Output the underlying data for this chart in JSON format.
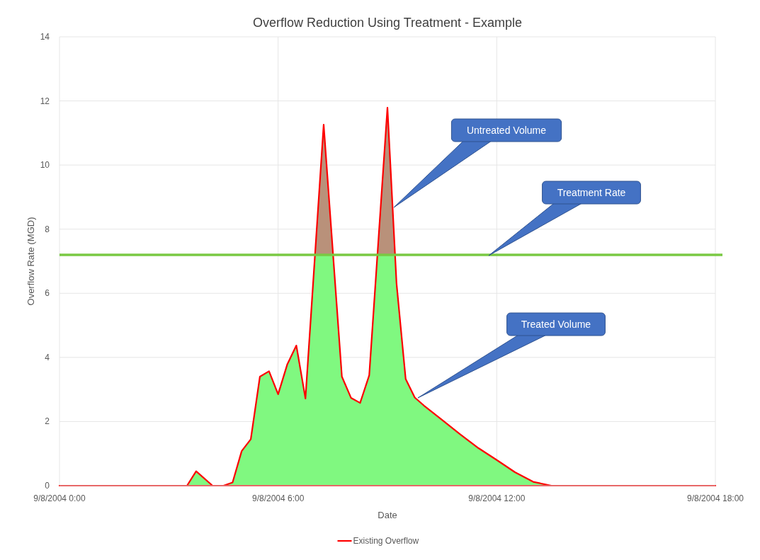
{
  "chart_data": {
    "type": "area",
    "title": "Overflow Reduction Using Treatment - Example",
    "xlabel": "Date",
    "ylabel": "Overflow Rate (MGD)",
    "x": [
      "2004-09-08T00:00",
      "2004-09-08T03:30",
      "2004-09-08T03:45",
      "2004-09-08T04:12",
      "2004-09-08T04:30",
      "2004-09-08T04:45",
      "2004-09-08T05:00",
      "2004-09-08T05:15",
      "2004-09-08T05:30",
      "2004-09-08T05:45",
      "2004-09-08T06:00",
      "2004-09-08T06:15",
      "2004-09-08T06:30",
      "2004-09-08T06:45",
      "2004-09-08T07:15",
      "2004-09-08T07:45",
      "2004-09-08T08:00",
      "2004-09-08T08:15",
      "2004-09-08T08:30",
      "2004-09-08T09:00",
      "2004-09-08T09:15",
      "2004-09-08T09:30",
      "2004-09-08T09:45",
      "2004-09-08T10:00",
      "2004-09-08T10:30",
      "2004-09-08T11:00",
      "2004-09-08T11:30",
      "2004-09-08T12:00",
      "2004-09-08T12:30",
      "2004-09-08T13:00",
      "2004-09-08T13:30",
      "2004-09-08T18:00"
    ],
    "series": [
      {
        "name": "Existing Overflow",
        "color": "#ff0000",
        "values": [
          0,
          0,
          0.45,
          0,
          0,
          0.1,
          1.08,
          1.45,
          3.4,
          3.57,
          2.85,
          3.78,
          4.37,
          2.72,
          11.26,
          3.4,
          2.74,
          2.58,
          3.44,
          11.79,
          6.3,
          3.33,
          2.75,
          2.5,
          2.05,
          1.6,
          1.17,
          0.8,
          0.42,
          0.12,
          0,
          0
        ]
      }
    ],
    "xlim": [
      "2004-09-08T00:00",
      "2004-09-08T18:00"
    ],
    "ylim": [
      0,
      14
    ],
    "xticks": [
      {
        "value": "2004-09-08T00:00",
        "label": "9/8/2004 0:00"
      },
      {
        "value": "2004-09-08T06:00",
        "label": "9/8/2004 6:00"
      },
      {
        "value": "2004-09-08T12:00",
        "label": "9/8/2004 12:00"
      },
      {
        "value": "2004-09-08T18:00",
        "label": "9/8/2004 18:00"
      }
    ],
    "yticks": [
      0,
      2,
      4,
      6,
      8,
      10,
      12,
      14
    ],
    "ref_lines": [
      {
        "axis": "y",
        "value": 7.2,
        "color": "#7ac943"
      }
    ],
    "annotations": [
      "Untreated Volume",
      "Treatment Rate",
      "Treated Volume"
    ],
    "grid": true,
    "legend": "bottom"
  }
}
